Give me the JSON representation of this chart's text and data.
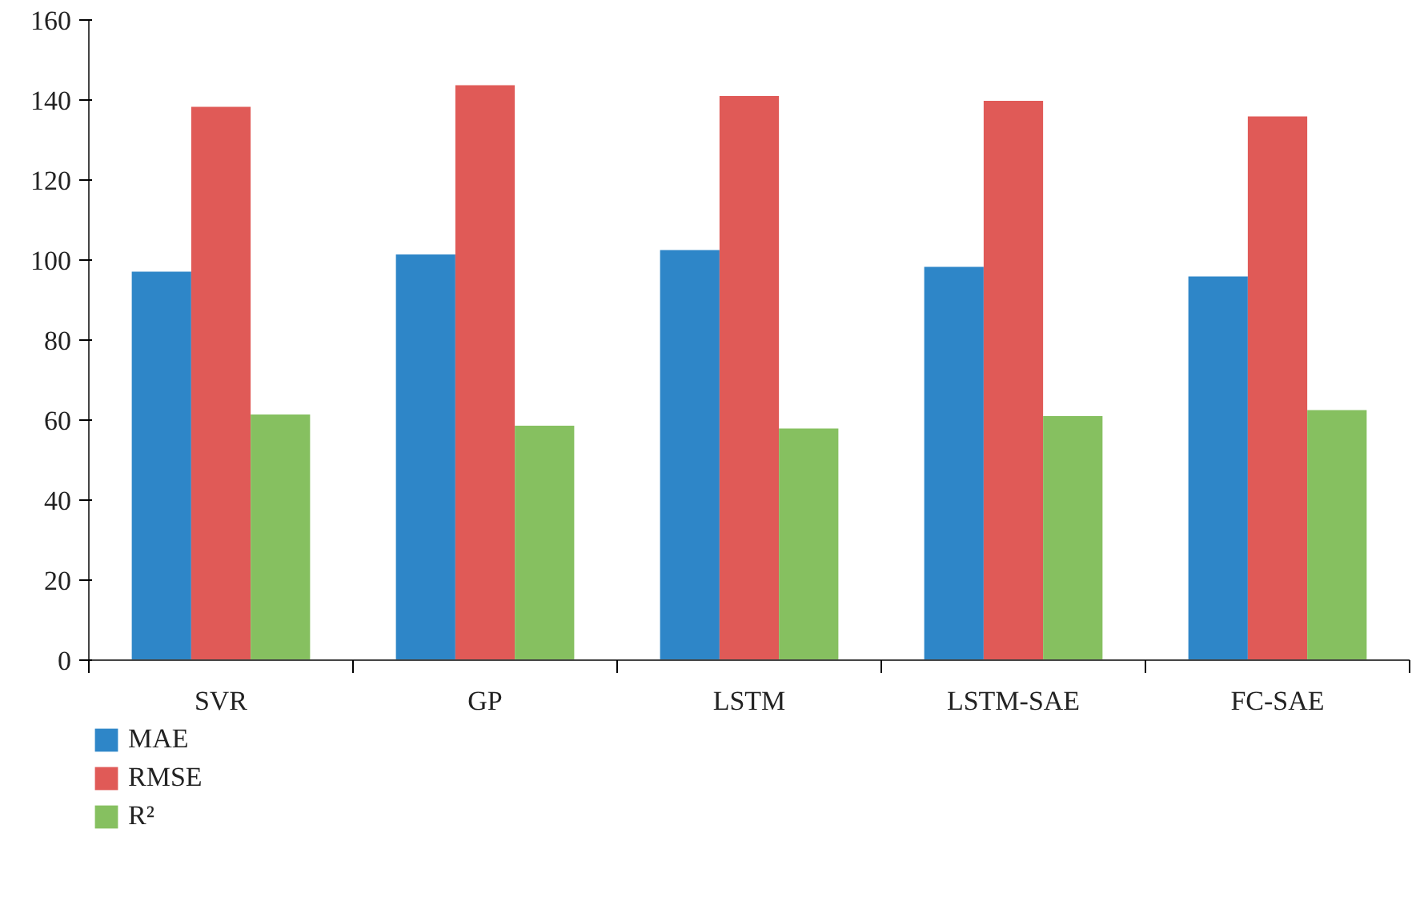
{
  "chart_data": {
    "type": "bar",
    "categories": [
      "SVR",
      "GP",
      "LSTM",
      "LSTM-SAE",
      "FC-SAE"
    ],
    "series": [
      {
        "name": "MAE",
        "color": "#2e86c8",
        "values": [
          97.1,
          101.4,
          102.5,
          98.3,
          95.9
        ]
      },
      {
        "name": "RMSE",
        "color": "#e05a57",
        "values": [
          138.3,
          143.7,
          141.0,
          139.8,
          135.9
        ]
      },
      {
        "name": "R²",
        "color": "#86c060",
        "values": [
          61.4,
          58.6,
          57.9,
          61.0,
          62.5
        ]
      }
    ],
    "ylim": [
      0,
      160
    ],
    "yticks": [
      0,
      20,
      40,
      60,
      80,
      100,
      120,
      140,
      160
    ],
    "grid": false,
    "legend": "bottom left"
  }
}
